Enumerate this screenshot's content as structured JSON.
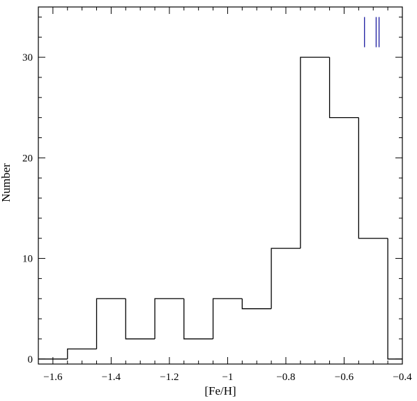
{
  "chart_data": {
    "type": "bar",
    "xlabel": "[Fe/H]",
    "ylabel": "Number",
    "xlim": [
      -1.65,
      -0.4
    ],
    "ylim": [
      -0.5,
      35
    ],
    "x_ticks": [
      -1.6,
      -1.4,
      -1.2,
      -1.0,
      -0.8,
      -0.6,
      -0.4
    ],
    "x_tick_labels": [
      "−1.6",
      "−1.4",
      "−1.2",
      "−1",
      "−0.8",
      "−0.6",
      "−0.4"
    ],
    "y_ticks": [
      0,
      10,
      20,
      30
    ],
    "y_tick_labels": [
      "0",
      "10",
      "20",
      "30"
    ],
    "bin_edges": [
      -1.65,
      -1.55,
      -1.45,
      -1.35,
      -1.25,
      -1.15,
      -1.05,
      -0.95,
      -0.85,
      -0.75,
      -0.65,
      -0.55,
      -0.45,
      -0.4
    ],
    "counts": [
      0,
      1,
      6,
      2,
      6,
      2,
      6,
      5,
      11,
      30,
      24,
      12,
      0
    ],
    "markers": {
      "color": "#1a1aa0",
      "x": [
        -0.53,
        -0.49,
        -0.48
      ],
      "y_range": [
        31,
        34
      ]
    }
  }
}
